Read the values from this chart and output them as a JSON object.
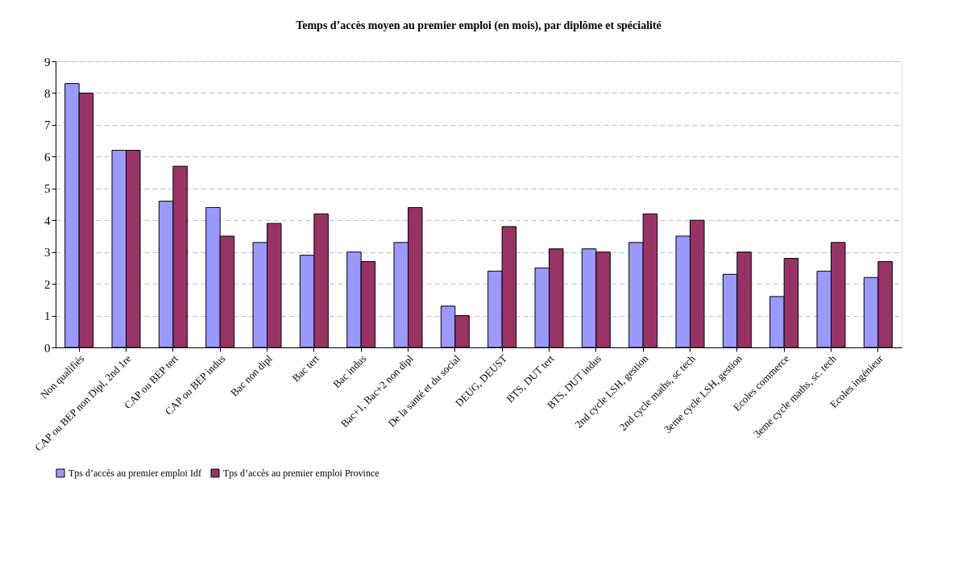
{
  "chart_data": {
    "type": "bar",
    "title": "Temps d’accès moyen au premier emploi (en mois), par diplôme et spécialité",
    "categories": [
      "Non qualifiés",
      "CAP ou BEP non Dipl, 2nd 1re",
      "CAP ou BEP tert",
      "CAP ou BEP indus",
      "Bac non dipl",
      "Bac tert",
      "Bac indus",
      "Bac+1, Bac+2 non dipl",
      "De la santé et du social",
      "DEUG, DEUST",
      "BTS, DUT tert",
      "BTS, DUT indus",
      "2nd cycle LSH, gestion",
      "2nd cycle maths, sc tech",
      "3eme cycle LSH, gestion",
      "Ecoles commerce",
      "3eme cycle maths, sc. tech",
      "Ecoles ingénieur"
    ],
    "series": [
      {
        "name": "Tps d’accès au premier emploi Idf",
        "color": "#9999ff",
        "values": [
          8.3,
          6.2,
          4.6,
          4.4,
          3.3,
          2.9,
          3.0,
          3.3,
          1.3,
          2.4,
          2.5,
          3.1,
          3.3,
          3.5,
          2.3,
          1.6,
          2.4,
          2.2
        ]
      },
      {
        "name": "Tps d’accès au premier emploi Province",
        "color": "#993366",
        "values": [
          8.0,
          6.2,
          5.7,
          3.5,
          3.9,
          4.2,
          2.7,
          4.4,
          1.0,
          3.8,
          3.1,
          3.0,
          4.2,
          4.0,
          3.0,
          2.8,
          3.3,
          2.7
        ]
      }
    ],
    "ylim": [
      0,
      9
    ],
    "yticks": [
      0,
      1,
      2,
      3,
      4,
      5,
      6,
      7,
      8,
      9
    ],
    "grid": "y",
    "legend": "bottom"
  }
}
